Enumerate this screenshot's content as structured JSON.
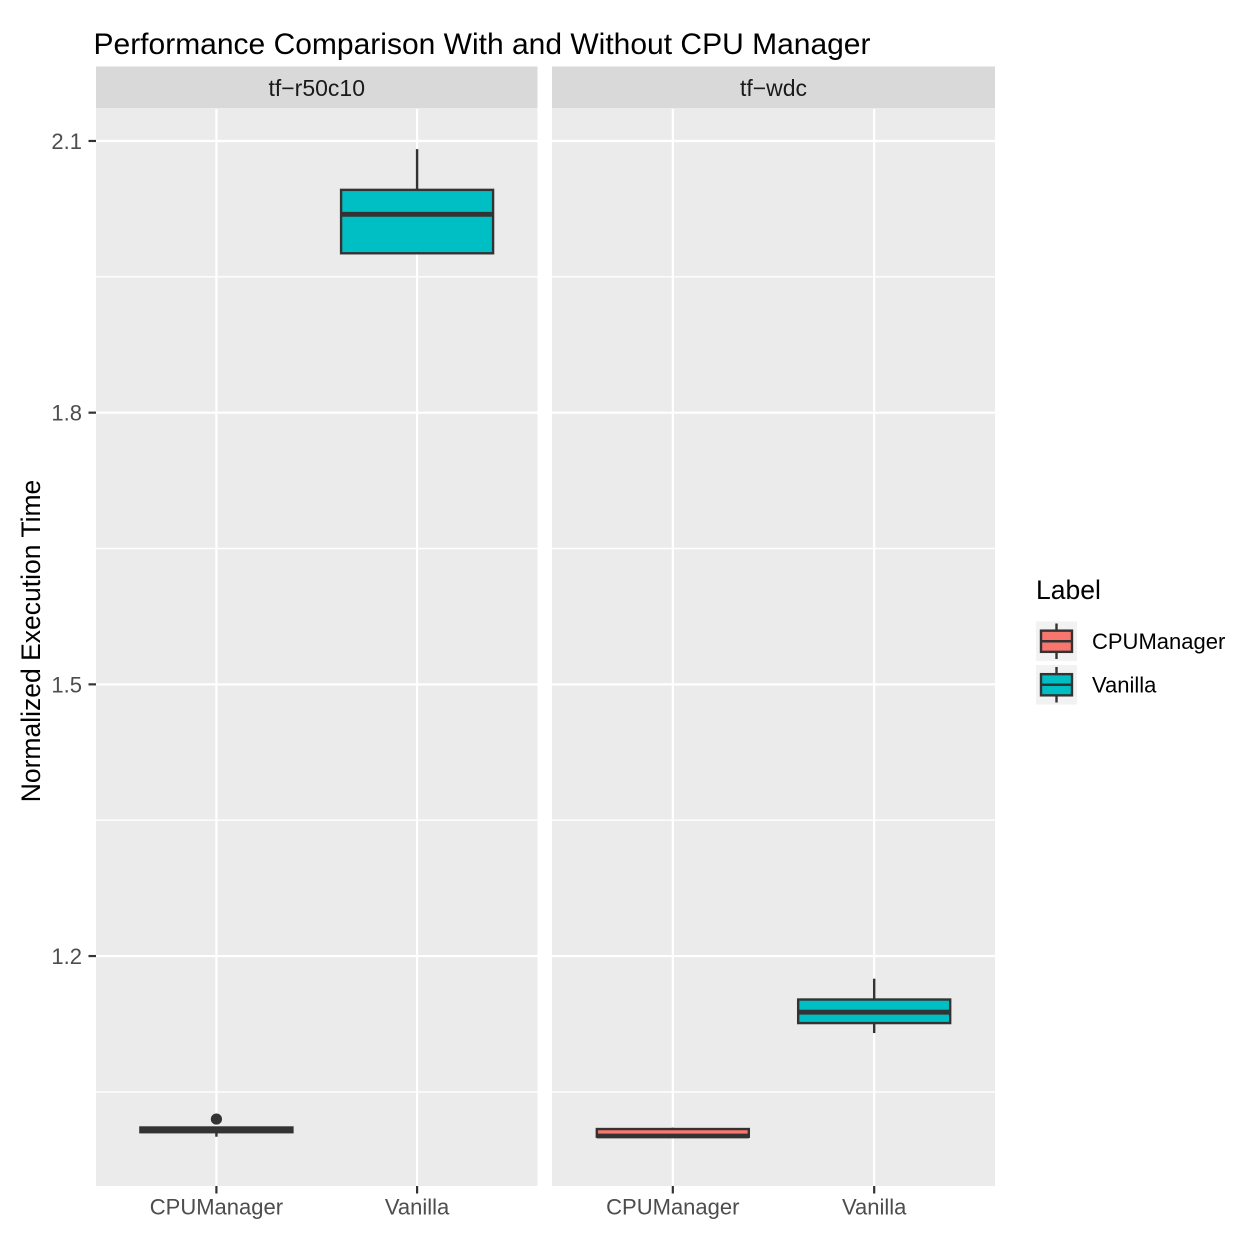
{
  "chart_data": {
    "type": "boxplot",
    "title": "Performance Comparison With and Without CPU Manager",
    "ylabel": "Normalized Execution Time",
    "xlabel": "",
    "categories": [
      "CPUManager",
      "Vanilla"
    ],
    "facets": [
      {
        "label": "tf−r50c10",
        "boxes": [
          {
            "category": "CPUManager",
            "min": 1.0005,
            "q1": 1.0055,
            "median": 1.0082,
            "q3": 1.0107,
            "max": 1.0107,
            "outliers": [
              1.02
            ]
          },
          {
            "category": "Vanilla",
            "min": 1.976,
            "q1": 1.976,
            "median": 2.019,
            "q3": 2.046,
            "max": 2.091,
            "outliers": []
          }
        ]
      },
      {
        "label": "tf−wdc",
        "boxes": [
          {
            "category": "CPUManager",
            "min": 1.0005,
            "q1": 1.0005,
            "median": 1.0013,
            "q3": 1.009,
            "max": 1.0105,
            "outliers": []
          },
          {
            "category": "Vanilla",
            "min": 1.115,
            "q1": 1.126,
            "median": 1.138,
            "q3": 1.152,
            "max": 1.175,
            "outliers": []
          }
        ]
      }
    ],
    "y_axis": {
      "ticks": [
        2.1,
        1.8,
        1.5,
        1.2
      ],
      "tick_labels": [
        "2.1",
        "1.8",
        "1.5",
        "1.2"
      ],
      "minor_ticks": [
        1.95,
        1.65,
        1.35,
        1.05
      ],
      "ylim": [
        0.9461,
        2.1353
      ],
      "grid": true
    },
    "legend": {
      "title": "Label",
      "position": "right",
      "entries": [
        {
          "label": "CPUManager",
          "color": "#F8766D"
        },
        {
          "label": "Vanilla",
          "color": "#00BFC4"
        }
      ]
    },
    "theme": {
      "background": "#FFFFFF",
      "panel_bg": "#EBEBEB",
      "strip_bg": "#D9D9D9",
      "grid_color": "#FFFFFF",
      "box_border": "#333333",
      "tick_color": "#333333",
      "axis_text_color": "#4D4D4D",
      "strip_text_color": "#1A1A1A",
      "title_color": "#000000",
      "legend_key_bg": "#F2F2F2"
    }
  }
}
